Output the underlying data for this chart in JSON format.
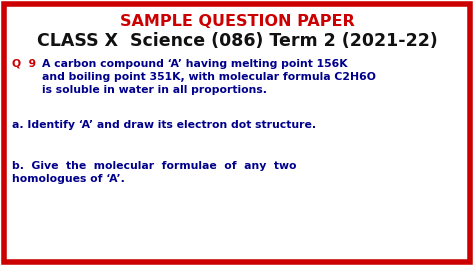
{
  "bg_color": "#ffffff",
  "border_color": "#cc0000",
  "title1": "SAMPLE QUESTION PAPER",
  "title1_color": "#cc0000",
  "title2": "CLASS X  Science (086) Term 2 (2021-22)",
  "title2_color": "#111111",
  "q_label": "Q  9  ",
  "q_label_color": "#cc0000",
  "q_body": "A carbon compound ‘A’ having melting point 156K\nand boiling point 351K, with molecular formula C2H6O\nis soluble in water in all proportions.",
  "q_body_color": "#00008b",
  "a_text": "a. Identify ‘A’ and draw its electron dot structure.",
  "a_text_color": "#00008b",
  "b_text": "b.  Give  the  molecular  formulae  of  any  two\nhomologues of ‘A’.",
  "b_text_color": "#00008b",
  "font_size_title1": 11.5,
  "font_size_title2": 12.5,
  "font_size_body": 7.8,
  "border_lw": 4
}
